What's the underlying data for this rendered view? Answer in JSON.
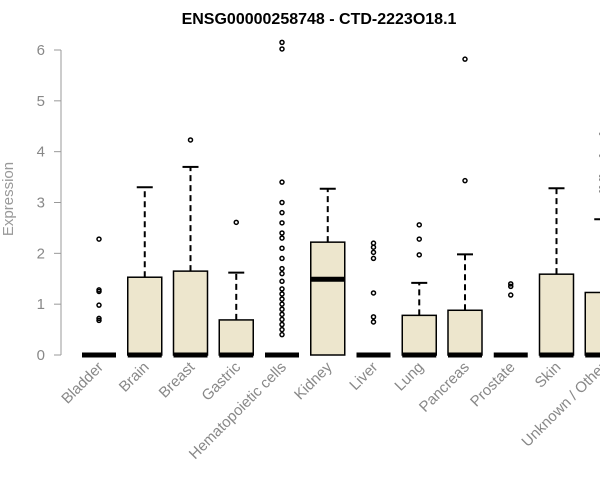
{
  "chart_data": {
    "type": "boxplot",
    "title": "ENSG00000258748 - CTD-2223O18.1",
    "ylabel": "Expression",
    "xlabel": "",
    "ylim": [
      0,
      6.2
    ],
    "yticks": [
      0,
      1,
      2,
      3,
      4,
      5,
      6
    ],
    "grid": false,
    "colors": {
      "box_fill": "#ede6cd",
      "box_stroke": "#000000",
      "axis": "#999999"
    },
    "categories": [
      "Bladder",
      "Brain",
      "Breast",
      "Gastric",
      "Hematopoietic cells",
      "Kidney",
      "Liver",
      "Lung",
      "Pancreas",
      "Prostate",
      "Skin",
      "Unknown / Other"
    ],
    "boxes": [
      {
        "category": "Bladder",
        "q1": 0,
        "median": 0,
        "q3": 0,
        "whisker_low": 0,
        "whisker_high": 0,
        "outliers": [
          0.68,
          0.72,
          0.98,
          1.25,
          1.28,
          2.28
        ]
      },
      {
        "category": "Brain",
        "q1": 0,
        "median": 0,
        "q3": 1.53,
        "whisker_low": 0,
        "whisker_high": 3.3,
        "outliers": []
      },
      {
        "category": "Breast",
        "q1": 0,
        "median": 0,
        "q3": 1.65,
        "whisker_low": 0,
        "whisker_high": 3.7,
        "outliers": [
          4.23
        ]
      },
      {
        "category": "Gastric",
        "q1": 0,
        "median": 0,
        "q3": 0.69,
        "whisker_low": 0,
        "whisker_high": 1.62,
        "outliers": [
          2.61
        ]
      },
      {
        "category": "Hematopoietic cells",
        "q1": 0,
        "median": 0,
        "q3": 0,
        "whisker_low": 0,
        "whisker_high": 0,
        "outliers": [
          0.4,
          0.5,
          0.6,
          0.7,
          0.8,
          0.9,
          1.0,
          1.1,
          1.2,
          1.3,
          1.45,
          1.6,
          1.7,
          1.9,
          2.1,
          2.3,
          2.4,
          2.6,
          2.8,
          3.0,
          3.4,
          6.02,
          6.15
        ]
      },
      {
        "category": "Kidney",
        "q1": 0,
        "median": 1.49,
        "q3": 2.22,
        "whisker_low": 0,
        "whisker_high": 3.27,
        "outliers": []
      },
      {
        "category": "Liver",
        "q1": 0,
        "median": 0,
        "q3": 0,
        "whisker_low": 0,
        "whisker_high": 0,
        "outliers": [
          0.65,
          0.75,
          1.22,
          1.9,
          2.02,
          2.12,
          2.2
        ]
      },
      {
        "category": "Lung",
        "q1": 0,
        "median": 0,
        "q3": 0.78,
        "whisker_low": 0,
        "whisker_high": 1.42,
        "outliers": [
          1.97,
          2.28,
          2.56
        ]
      },
      {
        "category": "Pancreas",
        "q1": 0,
        "median": 0,
        "q3": 0.88,
        "whisker_low": 0,
        "whisker_high": 1.98,
        "outliers": [
          3.43,
          5.82
        ]
      },
      {
        "category": "Prostate",
        "q1": 0,
        "median": 0,
        "q3": 0,
        "whisker_low": 0,
        "whisker_high": 0,
        "outliers": [
          1.18,
          1.35,
          1.4
        ]
      },
      {
        "category": "Skin",
        "q1": 0,
        "median": 0,
        "q3": 1.59,
        "whisker_low": 0,
        "whisker_high": 3.28,
        "outliers": []
      },
      {
        "category": "Unknown / Other",
        "q1": 0,
        "median": 0,
        "q3": 1.23,
        "whisker_low": 0,
        "whisker_high": 2.67,
        "outliers": [
          3.22,
          3.3,
          3.45,
          3.52,
          3.92,
          4.35
        ]
      }
    ]
  }
}
